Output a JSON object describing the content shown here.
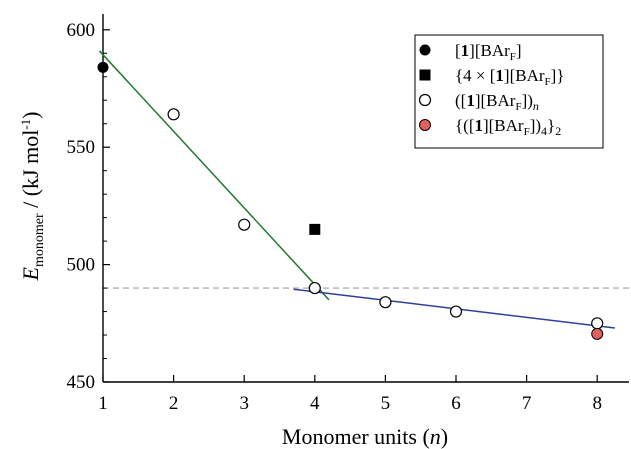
{
  "chart_data": {
    "type": "scatter",
    "xlabel": "Monomer units (n)",
    "ylabel": "E_monomer / (kJ mol-1)",
    "xlim": [
      1,
      8.4
    ],
    "ylim": [
      450,
      605
    ],
    "x_ticks": [
      1,
      2,
      3,
      4,
      5,
      6,
      7,
      8
    ],
    "y_ticks": [
      450,
      500,
      550,
      600
    ],
    "legend_position": "top-right",
    "series": [
      {
        "name": "[1][BArF]",
        "marker": "filled-circle",
        "color": "#000000",
        "points": [
          {
            "x": 1,
            "y": 584
          }
        ]
      },
      {
        "name": "{4 × [1][BArF]}",
        "marker": "filled-square",
        "color": "#000000",
        "points": [
          {
            "x": 4,
            "y": 515
          }
        ]
      },
      {
        "name": "([1][BArF])n",
        "marker": "open-circle",
        "color": "#000000",
        "points": [
          {
            "x": 2,
            "y": 564
          },
          {
            "x": 3,
            "y": 517
          },
          {
            "x": 4,
            "y": 490
          },
          {
            "x": 5,
            "y": 484
          },
          {
            "x": 6,
            "y": 480
          },
          {
            "x": 8,
            "y": 475
          }
        ]
      },
      {
        "name": "{([1][BArF])4}2",
        "marker": "filled-circle",
        "color": "#e06060",
        "points": [
          {
            "x": 8,
            "y": 470.5
          }
        ]
      }
    ],
    "fit_lines": [
      {
        "color": "#1e7a32",
        "x": [
          0.95,
          4.2
        ],
        "y": [
          591,
          485
        ]
      },
      {
        "color": "#2e3f9e",
        "x": [
          3.7,
          8.25
        ],
        "y": [
          489.5,
          473
        ]
      }
    ],
    "reference_lines": [
      {
        "orientation": "horizontal",
        "y": 490,
        "color": "#b0b0b0",
        "style": "dashed"
      }
    ]
  }
}
